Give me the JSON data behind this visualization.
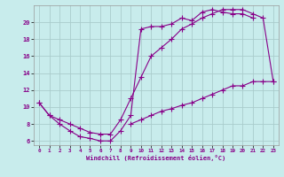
{
  "xlabel": "Windchill (Refroidissement éolien,°C)",
  "background_color": "#c8ecec",
  "grid_color": "#aacccc",
  "line_color": "#880088",
  "xlim": [
    -0.5,
    23.5
  ],
  "ylim": [
    5.5,
    22.0
  ],
  "xtick_labels": [
    "0",
    "1",
    "2",
    "3",
    "4",
    "5",
    "6",
    "7",
    "8",
    "9",
    "10",
    "11",
    "12",
    "13",
    "14",
    "15",
    "16",
    "17",
    "18",
    "19",
    "20",
    "21",
    "22",
    "23"
  ],
  "ytick_values": [
    6,
    8,
    10,
    12,
    14,
    16,
    18,
    20
  ],
  "line1_x": [
    0,
    1,
    2,
    3,
    4,
    5,
    6,
    7,
    8,
    9,
    10,
    11,
    12,
    13,
    14,
    15,
    16,
    17,
    18,
    19,
    20,
    21
  ],
  "line1_y": [
    10.5,
    9.0,
    8.0,
    7.2,
    6.5,
    6.3,
    6.0,
    6.0,
    7.2,
    9.0,
    19.2,
    19.5,
    19.5,
    19.8,
    20.5,
    20.2,
    21.2,
    21.5,
    21.2,
    21.0,
    21.0,
    20.5
  ],
  "line2_x": [
    0,
    1,
    2,
    3,
    4,
    5,
    6,
    7,
    8,
    9,
    10,
    11,
    12,
    13,
    14,
    15,
    16,
    17,
    18,
    19,
    20,
    21,
    22,
    23
  ],
  "line2_y": [
    10.5,
    9.0,
    8.5,
    8.0,
    7.5,
    7.0,
    6.8,
    6.8,
    8.5,
    11.0,
    13.5,
    16.0,
    17.0,
    18.0,
    19.2,
    19.8,
    20.5,
    21.0,
    21.5,
    21.5,
    21.5,
    21.0,
    20.5,
    13.0
  ],
  "line3_x": [
    9,
    10,
    11,
    12,
    13,
    14,
    15,
    16,
    17,
    18,
    19,
    20,
    21,
    22,
    23
  ],
  "line3_y": [
    8.0,
    8.5,
    9.0,
    9.5,
    9.8,
    10.2,
    10.5,
    11.0,
    11.5,
    12.0,
    12.5,
    12.5,
    13.0,
    13.0,
    13.0
  ]
}
